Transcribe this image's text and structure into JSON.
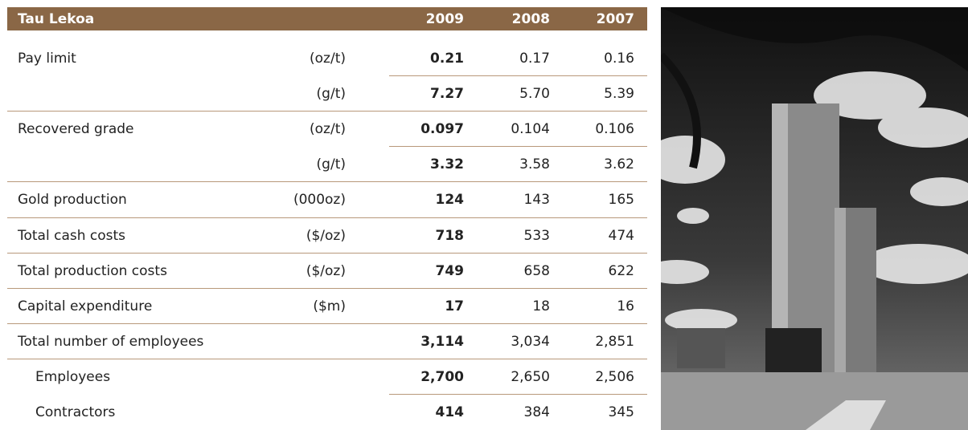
{
  "header": {
    "title": "Tau Lekoa",
    "columns": [
      "2009",
      "2008",
      "2007"
    ]
  },
  "rows": [
    {
      "label": "Pay limit",
      "measures": [
        {
          "unit": "(oz/t)",
          "values": [
            "0.21",
            "0.17",
            "0.16"
          ]
        },
        {
          "unit": "(g/t)",
          "values": [
            "7.27",
            "5.70",
            "5.39"
          ]
        }
      ]
    },
    {
      "label": "Recovered grade",
      "measures": [
        {
          "unit": "(oz/t)",
          "values": [
            "0.097",
            "0.104",
            "0.106"
          ]
        },
        {
          "unit": "(g/t)",
          "values": [
            "3.32",
            "3.58",
            "3.62"
          ]
        }
      ]
    },
    {
      "label": "Gold production",
      "measures": [
        {
          "unit": "(000oz)",
          "values": [
            "124",
            "143",
            "165"
          ]
        }
      ]
    },
    {
      "label": "Total cash costs",
      "measures": [
        {
          "unit": "($/oz)",
          "values": [
            "718",
            "533",
            "474"
          ]
        }
      ]
    },
    {
      "label": "Total production costs",
      "measures": [
        {
          "unit": "($/oz)",
          "values": [
            "749",
            "658",
            "622"
          ]
        }
      ]
    },
    {
      "label": "Capital expenditure",
      "measures": [
        {
          "unit": "($m)",
          "values": [
            "17",
            "18",
            "16"
          ]
        }
      ]
    },
    {
      "label": "Total number of employees",
      "measures": [
        {
          "values": [
            "3,114",
            "3,034",
            "2,851"
          ]
        }
      ],
      "breakdown": [
        {
          "label": "Employees",
          "values": [
            "2,700",
            "2,650",
            "2,506"
          ]
        },
        {
          "label": "Contractors",
          "values": [
            "414",
            "384",
            "345"
          ]
        }
      ]
    }
  ]
}
